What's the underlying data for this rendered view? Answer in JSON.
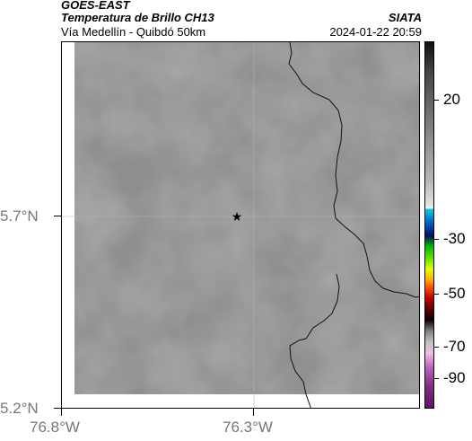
{
  "header": {
    "satellite": "GOES-EAST",
    "product": "Temperatura de Brillo CH13",
    "region": "Vía Medellín - Quibdó 50km",
    "organization": "SIATA",
    "datetime": "2024-01-22 20:59"
  },
  "axes": {
    "y_ticks": [
      "5.7°N",
      "5.2°N"
    ],
    "x_ticks": [
      "76.8°W",
      "76.3°W"
    ]
  },
  "colorbar": {
    "labels": [
      "20",
      "-30",
      "-50",
      "-70",
      "-90"
    ]
  },
  "map": {
    "marker_icon": "star-icon",
    "colors": {
      "field": "#8e8e8e",
      "boundary": "#000000",
      "grid": "#b4b4b4"
    }
  }
}
